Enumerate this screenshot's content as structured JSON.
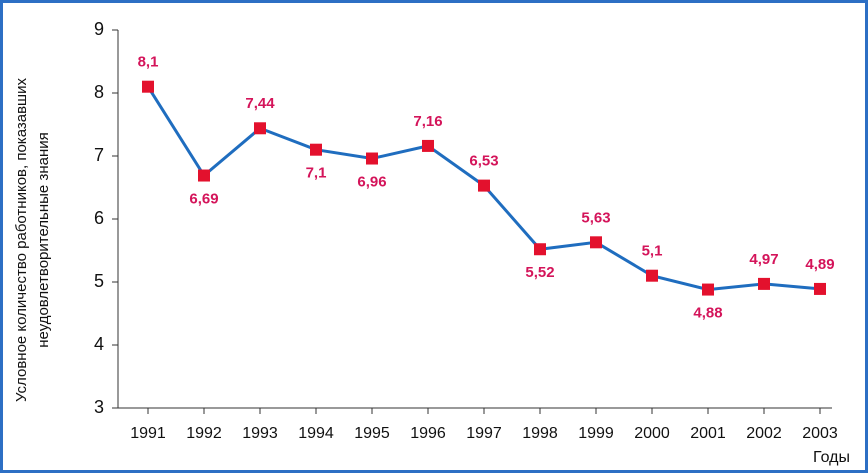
{
  "chart_data": {
    "type": "line",
    "y_label": [
      "Условное количество работников,  показавших",
      "неудовлетворительные знания"
    ],
    "x_label": "Годы",
    "categories": [
      "1991",
      "1992",
      "1993",
      "1994",
      "1995",
      "1996",
      "1997",
      "1998",
      "1999",
      "2000",
      "2001",
      "2002",
      "2003"
    ],
    "series": [
      {
        "color": "#1f6dbf",
        "marker_color": "#e3112d",
        "values": [
          8.1,
          6.69,
          7.44,
          7.1,
          6.96,
          7.16,
          6.53,
          5.52,
          5.63,
          5.1,
          4.88,
          4.97,
          4.89
        ],
        "value_labels": [
          "8,1",
          "6,69",
          "7,44",
          "7,1",
          "6,96",
          "7,16",
          "6,53",
          "5,52",
          "5,63",
          "5,1",
          "4,88",
          "4,97",
          "4,89"
        ]
      }
    ],
    "label_color": "#d4145a",
    "ylim": [
      3,
      9
    ],
    "yticks": [
      3,
      4,
      5,
      6,
      7,
      8,
      9
    ],
    "grid": false
  }
}
